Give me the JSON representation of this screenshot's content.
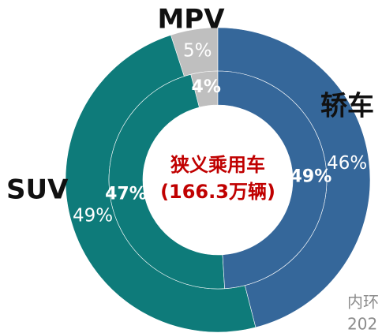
{
  "chart_data": {
    "type": "nested-donut",
    "categories": [
      "轿车",
      "SUV",
      "MPV"
    ],
    "colors": [
      "#35679a",
      "#0e7b7a",
      "#bfbfbf"
    ],
    "rings": [
      {
        "values": [
          49,
          47,
          4
        ],
        "value_labels": [
          "49%",
          "47%",
          "4%"
        ]
      },
      {
        "values": [
          46,
          49,
          5
        ],
        "value_labels": [
          "46%",
          "49%",
          "5%"
        ]
      }
    ],
    "center_label": [
      "狭义乘用车",
      "(166.3万辆)"
    ],
    "annotations": [
      "内环",
      "202"
    ]
  }
}
